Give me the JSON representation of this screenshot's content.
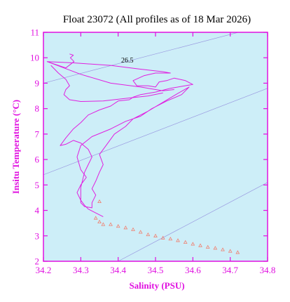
{
  "chart_data": {
    "type": "line",
    "title": "Float 23072  (All profiles as of 18 Mar 2026)",
    "xlabel": "Salinity (PSU)",
    "ylabel": "Insitu Temperature (°C)",
    "xlim": [
      34.2,
      34.8
    ],
    "ylim": [
      2,
      11
    ],
    "x_ticks": [
      "34.2",
      "34.3",
      "34.4",
      "34.5",
      "34.6",
      "34.7",
      "34.8"
    ],
    "y_ticks": [
      "2",
      "3",
      "4",
      "5",
      "6",
      "7",
      "8",
      "9",
      "10",
      "11"
    ],
    "grid": false,
    "isopycnal_label": "26.5",
    "colors": {
      "background": "#cdeef8",
      "axis": "#e010e0",
      "series": "#e020e0",
      "deep_markers": "#f08070",
      "isopycnal": "#9a9ae0"
    },
    "isopycnals": [
      {
        "points": [
          [
            34.2,
            9.0
          ],
          [
            34.8,
            11.3
          ]
        ]
      },
      {
        "points": [
          [
            34.2,
            5.4
          ],
          [
            34.8,
            8.8
          ]
        ]
      },
      {
        "points": [
          [
            34.4,
            2.0
          ],
          [
            34.8,
            5.1
          ]
        ]
      }
    ],
    "series": [
      {
        "type": "line",
        "points": [
          [
            34.27,
            10.15
          ],
          [
            34.28,
            10.1
          ],
          [
            34.272,
            10.0
          ],
          [
            34.282,
            9.85
          ],
          [
            34.26,
            9.6
          ],
          [
            34.21,
            9.85
          ],
          [
            34.28,
            9.8
          ],
          [
            34.38,
            9.7
          ],
          [
            34.46,
            9.55
          ],
          [
            34.52,
            9.45
          ],
          [
            34.54,
            9.4
          ],
          [
            34.5,
            9.4
          ],
          [
            34.47,
            9.3
          ],
          [
            34.44,
            9.1
          ],
          [
            34.45,
            8.9
          ],
          [
            34.48,
            8.9
          ],
          [
            34.5,
            8.85
          ],
          [
            34.51,
            9.05
          ],
          [
            34.53,
            9.1
          ],
          [
            34.55,
            9.2
          ],
          [
            34.58,
            9.1
          ],
          [
            34.6,
            8.95
          ],
          [
            34.54,
            8.8
          ],
          [
            34.5,
            8.65
          ],
          [
            34.46,
            8.55
          ],
          [
            34.44,
            8.45
          ],
          [
            34.43,
            8.35
          ],
          [
            34.4,
            8.3
          ],
          [
            34.38,
            8.1
          ],
          [
            34.35,
            7.95
          ],
          [
            34.32,
            7.75
          ],
          [
            34.3,
            7.45
          ],
          [
            34.28,
            7.2
          ],
          [
            34.26,
            6.85
          ],
          [
            34.245,
            6.55
          ],
          [
            34.26,
            6.6
          ],
          [
            34.28,
            6.75
          ],
          [
            34.3,
            6.65
          ],
          [
            34.32,
            6.4
          ],
          [
            34.33,
            6.1
          ],
          [
            34.32,
            5.8
          ],
          [
            34.31,
            5.5
          ],
          [
            34.305,
            5.2
          ],
          [
            34.3,
            4.9
          ],
          [
            34.3,
            4.6
          ],
          [
            34.3,
            4.3
          ],
          [
            34.31,
            4.15
          ],
          [
            34.33,
            4.1
          ],
          [
            34.33,
            4.3
          ],
          [
            34.34,
            4.6
          ],
          [
            34.33,
            4.85
          ],
          [
            34.34,
            5.15
          ],
          [
            34.35,
            5.5
          ],
          [
            34.36,
            5.8
          ],
          [
            34.35,
            6.2
          ],
          [
            34.37,
            6.6
          ],
          [
            34.39,
            7.0
          ],
          [
            34.42,
            7.3
          ],
          [
            34.44,
            7.6
          ],
          [
            34.48,
            7.9
          ],
          [
            34.52,
            8.25
          ],
          [
            34.56,
            8.6
          ],
          [
            34.59,
            8.85
          ],
          [
            34.57,
            8.55
          ],
          [
            34.53,
            8.3
          ],
          [
            34.49,
            8.0
          ],
          [
            34.46,
            7.7
          ],
          [
            34.42,
            7.5
          ],
          [
            34.38,
            7.2
          ],
          [
            34.33,
            6.9
          ],
          [
            34.3,
            6.55
          ],
          [
            34.29,
            6.1
          ],
          [
            34.3,
            5.6
          ],
          [
            34.315,
            5.3
          ],
          [
            34.3,
            5.0
          ],
          [
            34.29,
            4.7
          ],
          [
            34.3,
            4.4
          ],
          [
            34.31,
            4.2
          ],
          [
            34.32,
            4.05
          ],
          [
            34.34,
            3.9
          ],
          [
            34.36,
            3.75
          ]
        ]
      },
      {
        "type": "line",
        "points": [
          [
            34.21,
            9.85
          ],
          [
            34.3,
            9.35
          ],
          [
            34.38,
            9.0
          ],
          [
            34.46,
            8.85
          ],
          [
            34.52,
            8.7
          ],
          [
            34.55,
            8.75
          ]
        ]
      },
      {
        "type": "line",
        "points": [
          [
            34.22,
            9.7
          ],
          [
            34.24,
            9.4
          ],
          [
            34.26,
            9.15
          ],
          [
            34.27,
            8.9
          ],
          [
            34.26,
            8.75
          ],
          [
            34.255,
            8.55
          ],
          [
            34.27,
            8.35
          ],
          [
            34.3,
            8.28
          ],
          [
            34.36,
            8.3
          ],
          [
            34.43,
            8.42
          ],
          [
            34.48,
            8.5
          ],
          [
            34.52,
            8.62
          ]
        ]
      },
      {
        "type": "markers",
        "marker": "triangle",
        "points": [
          [
            34.35,
            4.35
          ],
          [
            34.34,
            3.7
          ],
          [
            34.35,
            3.55
          ],
          [
            34.36,
            3.45
          ],
          [
            34.38,
            3.45
          ],
          [
            34.4,
            3.38
          ],
          [
            34.42,
            3.32
          ],
          [
            34.44,
            3.25
          ],
          [
            34.46,
            3.15
          ],
          [
            34.48,
            3.05
          ],
          [
            34.5,
            3.0
          ],
          [
            34.52,
            2.92
          ],
          [
            34.54,
            2.88
          ],
          [
            34.56,
            2.82
          ],
          [
            34.58,
            2.75
          ],
          [
            34.6,
            2.68
          ],
          [
            34.62,
            2.62
          ],
          [
            34.64,
            2.56
          ],
          [
            34.66,
            2.52
          ],
          [
            34.68,
            2.46
          ],
          [
            34.7,
            2.4
          ],
          [
            34.72,
            2.35
          ]
        ]
      }
    ]
  }
}
